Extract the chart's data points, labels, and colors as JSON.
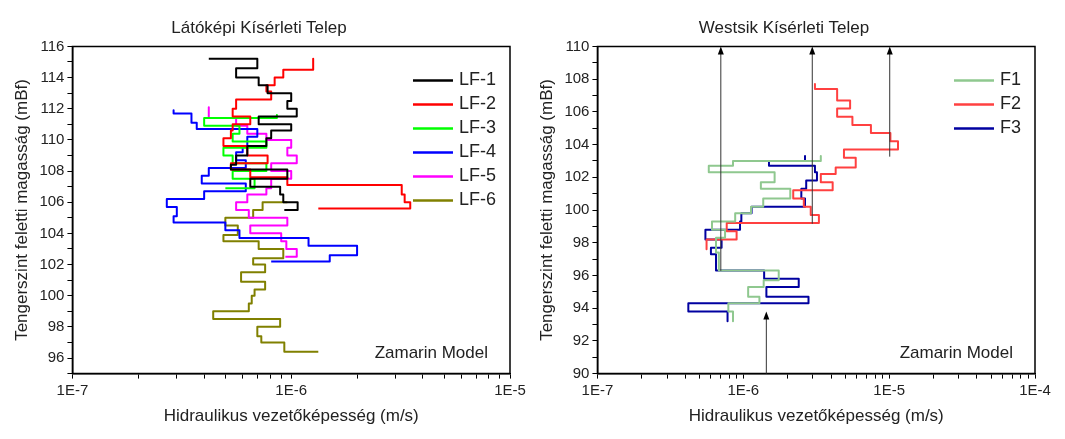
{
  "chart_data": [
    {
      "type": "line",
      "title": "Látóképi Kísérleti Telep",
      "xlabel": "Hidraulikus vezetőképesség (m/s)",
      "ylabel": "Tengerszint feletti magasság (mBf)",
      "log": "x",
      "legend": "top right",
      "marker": "none",
      "annotations": [
        "Zamarin Model"
      ],
      "xlim": [
        1e-07,
        1e-05
      ],
      "ylim": [
        95,
        116
      ],
      "xticks": [
        {
          "value": 1e-07,
          "label": "1E-7"
        },
        {
          "value": 2e-07,
          "label": null
        },
        {
          "value": 3e-07,
          "label": null
        },
        {
          "value": 4e-07,
          "label": null
        },
        {
          "value": 5e-07,
          "label": null
        },
        {
          "value": 6e-07,
          "label": null
        },
        {
          "value": 7e-07,
          "label": null
        },
        {
          "value": 8e-07,
          "label": null
        },
        {
          "value": 9e-07,
          "label": null
        },
        {
          "value": 1e-06,
          "label": "1E-6"
        },
        {
          "value": 2e-06,
          "label": null
        },
        {
          "value": 3e-06,
          "label": null
        },
        {
          "value": 4e-06,
          "label": null
        },
        {
          "value": 5e-06,
          "label": null
        },
        {
          "value": 6e-06,
          "label": null
        },
        {
          "value": 7e-06,
          "label": null
        },
        {
          "value": 8e-06,
          "label": null
        },
        {
          "value": 9e-06,
          "label": null
        },
        {
          "value": 1e-05,
          "label": "1E-5"
        }
      ],
      "yticks": [
        {
          "value": 95,
          "label": null
        },
        96,
        {
          "value": 97,
          "label": null
        },
        98,
        {
          "value": 99,
          "label": null
        },
        100,
        {
          "value": 101,
          "label": null
        },
        102,
        {
          "value": 103,
          "label": null
        },
        104,
        {
          "value": 105,
          "label": null
        },
        106,
        {
          "value": 107,
          "label": null
        },
        108,
        {
          "value": 109,
          "label": null
        },
        110,
        {
          "value": 111,
          "label": null
        },
        112,
        {
          "value": 113,
          "label": null
        },
        114,
        {
          "value": 115,
          "label": null
        },
        116
      ],
      "series": [
        {
          "name": "LF-1",
          "color": "#000000",
          "x": [
            4.2e-07,
            7e-07,
            7e-07,
            5.6e-07,
            5.6e-07,
            7.1e-07,
            7.1e-07,
            7.8e-07,
            7.8e-07,
            1e-06,
            1e-06,
            9.6e-07,
            9.6e-07,
            1.06e-06,
            1.06e-06,
            7.1e-07,
            7.1e-07,
            1e-06,
            1e-06,
            8.1e-07,
            8.1e-07,
            7.7e-07,
            7.7e-07,
            6.3e-07,
            6.3e-07,
            5.6e-07,
            5.6e-07,
            5.3e-07,
            5.3e-07,
            9.6e-07,
            9.6e-07,
            6.5e-07,
            6.5e-07,
            8.9e-07,
            8.9e-07,
            9.2e-07,
            9.2e-07,
            1.07e-06,
            1.07e-06,
            9.3e-07
          ],
          "values": [
            115.2,
            115.2,
            114.6,
            114.6,
            114.0,
            114.0,
            113.5,
            113.5,
            113.0,
            113.0,
            112.5,
            112.5,
            112.0,
            112.0,
            111.5,
            111.5,
            111.0,
            111.0,
            110.6,
            110.6,
            110.1,
            110.1,
            109.6,
            109.6,
            109.0,
            109.0,
            108.4,
            108.4,
            108.1,
            108.1,
            107.5,
            107.5,
            107.0,
            107.0,
            106.5,
            106.5,
            106.0,
            106.0,
            105.5,
            105.5
          ]
        },
        {
          "name": "LF-2",
          "color": "#ff0000",
          "x": [
            1.26e-06,
            1.26e-06,
            9.2e-07,
            9.2e-07,
            8.4e-07,
            8.4e-07,
            7.7e-07,
            7.7e-07,
            8.1e-07,
            8.1e-07,
            5.6e-07,
            5.6e-07,
            5.4e-07,
            5.4e-07,
            6.5e-07,
            6.5e-07,
            5.4e-07,
            5.4e-07,
            5.3e-07,
            5.3e-07,
            4.9e-07,
            4.9e-07,
            6.3e-07,
            6.3e-07,
            7.8e-07,
            7.8e-07,
            5.3e-07,
            5.3e-07,
            6.5e-07,
            6.5e-07,
            9.6e-07,
            9.6e-07,
            3.2e-06,
            3.2e-06,
            3.3e-06,
            3.3e-06,
            3.5e-06,
            3.5e-06,
            1.33e-06
          ],
          "values": [
            115.2,
            114.5,
            114.5,
            114.0,
            114.0,
            113.5,
            113.5,
            113.1,
            113.1,
            112.6,
            112.6,
            112.0,
            112.0,
            111.5,
            111.5,
            111.0,
            111.0,
            110.6,
            110.6,
            110.1,
            110.1,
            109.6,
            109.6,
            109.0,
            109.0,
            108.5,
            108.5,
            108.1,
            108.1,
            107.6,
            107.6,
            107.1,
            107.1,
            106.5,
            106.5,
            106.0,
            106.0,
            105.6,
            105.6
          ]
        },
        {
          "name": "LF-3",
          "color": "#00ff00",
          "x": [
            8.6e-07,
            8.6e-07,
            4e-07,
            4e-07,
            5.8e-07,
            5.8e-07,
            5.4e-07,
            5.4e-07,
            7.7e-07,
            7.7e-07,
            4.9e-07,
            4.9e-07,
            5.4e-07,
            5.4e-07,
            7.7e-07,
            7.7e-07,
            5.4e-07,
            5.4e-07,
            6.8e-07,
            6.8e-07,
            5e-07
          ],
          "values": [
            111.6,
            111.4,
            111.4,
            110.9,
            110.9,
            110.4,
            110.4,
            109.9,
            109.9,
            109.5,
            109.5,
            109.0,
            109.0,
            108.5,
            108.5,
            108.0,
            108.0,
            107.5,
            107.5,
            106.9,
            106.9
          ]
        },
        {
          "name": "LF-4",
          "color": "#0000ff",
          "x": [
            2.9e-07,
            2.9e-07,
            3.5e-07,
            3.5e-07,
            3.7e-07,
            3.7e-07,
            7e-07,
            7e-07,
            6.3e-07,
            6.3e-07,
            6e-07,
            6e-07,
            5.6e-07,
            5.6e-07,
            6.2e-07,
            6.2e-07,
            4.2e-07,
            4.2e-07,
            3.9e-07,
            3.9e-07,
            6.2e-07,
            6.2e-07,
            4e-07,
            4e-07,
            2.7e-07,
            2.7e-07,
            3e-07,
            3e-07,
            2.9e-07,
            2.9e-07,
            5e-07,
            5e-07,
            5.8e-07,
            5.8e-07,
            1.2e-06,
            1.2e-06,
            2e-06,
            2e-06,
            1.5e-06,
            1.5e-06,
            8.1e-07
          ],
          "values": [
            111.9,
            111.7,
            111.7,
            111.1,
            111.1,
            110.7,
            110.7,
            110.2,
            110.2,
            109.6,
            109.6,
            109.2,
            109.2,
            108.7,
            108.7,
            108.2,
            108.2,
            107.7,
            107.7,
            107.2,
            107.2,
            106.7,
            106.7,
            106.2,
            106.2,
            105.7,
            105.7,
            105.1,
            105.1,
            104.7,
            104.7,
            104.2,
            104.2,
            103.7,
            103.7,
            103.2,
            103.2,
            102.6,
            102.6,
            102.2,
            102.2
          ]
        },
        {
          "name": "LF-5",
          "color": "#ff00ff",
          "x": [
            4.2e-07,
            4.2e-07,
            5.6e-07,
            5.6e-07,
            6.3e-07,
            6.3e-07,
            7.7e-07,
            7.7e-07,
            1e-06,
            1e-06,
            9.6e-07,
            9.6e-07,
            1.06e-06,
            1.06e-06,
            8.1e-07,
            8.1e-07,
            1e-06,
            1e-06,
            8.1e-07,
            8.1e-07,
            7.7e-07,
            7.7e-07,
            6.3e-07,
            6.3e-07,
            5.6e-07,
            5.6e-07,
            6.4e-07,
            6.4e-07,
            9.6e-07,
            9.6e-07,
            6.5e-07,
            6.5e-07,
            9e-07,
            9e-07,
            9.5e-07,
            9.5e-07,
            1.06e-06,
            1.06e-06,
            9.4e-07
          ],
          "values": [
            112.1,
            111.4,
            111.4,
            110.9,
            110.9,
            110.4,
            110.4,
            110.0,
            110.0,
            109.5,
            109.5,
            109.0,
            109.0,
            108.5,
            108.5,
            108.0,
            108.0,
            107.5,
            107.5,
            106.9,
            106.9,
            106.5,
            106.5,
            106.0,
            106.0,
            105.5,
            105.5,
            105.0,
            105.0,
            104.5,
            104.5,
            104.0,
            104.0,
            103.5,
            103.5,
            103.0,
            103.0,
            102.5,
            102.5
          ]
        },
        {
          "name": "LF-6",
          "color": "#808000",
          "x": [
            9.6e-07,
            7.4e-07,
            7.4e-07,
            6.7e-07,
            6.7e-07,
            5e-07,
            5e-07,
            5.7e-07,
            5.7e-07,
            4.9e-07,
            4.9e-07,
            7.1e-07,
            7.1e-07,
            9.2e-07,
            9.2e-07,
            6.7e-07,
            6.7e-07,
            7.6e-07,
            7.6e-07,
            5.9e-07,
            5.9e-07,
            7.6e-07,
            7.6e-07,
            6.8e-07,
            6.8e-07,
            6.6e-07,
            6.6e-07,
            6.4e-07,
            6.4e-07,
            4.4e-07,
            4.4e-07,
            8.9e-07,
            8.9e-07,
            7e-07,
            7e-07,
            7.3e-07,
            7.3e-07,
            9.3e-07,
            9.3e-07,
            1.33e-06
          ],
          "values": [
            106.0,
            106.0,
            105.5,
            105.5,
            105.0,
            105.0,
            104.5,
            104.5,
            103.9,
            103.9,
            103.5,
            103.5,
            103.0,
            103.0,
            102.4,
            102.4,
            102.0,
            102.0,
            101.5,
            101.5,
            100.9,
            100.9,
            100.4,
            100.4,
            100.0,
            100.0,
            99.5,
            99.5,
            99.0,
            99.0,
            98.5,
            98.5,
            98.0,
            98.0,
            97.4,
            97.4,
            97.0,
            97.0,
            96.4,
            96.4
          ]
        }
      ]
    },
    {
      "type": "line",
      "title": "Westsik Kísérleti Telep",
      "xlabel": "Hidraulikus vezetőképesség (m/s)",
      "ylabel": "Tengerszint feletti magasság (mBf)",
      "log": "x",
      "legend": "top right",
      "marker": "none",
      "annotations": [
        "Zamarin Model"
      ],
      "xlim": [
        1e-07,
        0.0001
      ],
      "ylim": [
        90,
        110
      ],
      "xticks": [
        {
          "value": 1e-07,
          "label": "1E-7"
        },
        {
          "value": 2e-07,
          "label": null
        },
        {
          "value": 3e-07,
          "label": null
        },
        {
          "value": 4e-07,
          "label": null
        },
        {
          "value": 5e-07,
          "label": null
        },
        {
          "value": 6e-07,
          "label": null
        },
        {
          "value": 7e-07,
          "label": null
        },
        {
          "value": 8e-07,
          "label": null
        },
        {
          "value": 9e-07,
          "label": null
        },
        {
          "value": 1e-06,
          "label": "1E-6"
        },
        {
          "value": 2e-06,
          "label": null
        },
        {
          "value": 3e-06,
          "label": null
        },
        {
          "value": 4e-06,
          "label": null
        },
        {
          "value": 5e-06,
          "label": null
        },
        {
          "value": 6e-06,
          "label": null
        },
        {
          "value": 7e-06,
          "label": null
        },
        {
          "value": 8e-06,
          "label": null
        },
        {
          "value": 9e-06,
          "label": null
        },
        {
          "value": 1e-05,
          "label": "1E-5"
        },
        {
          "value": 2e-05,
          "label": null
        },
        {
          "value": 3e-05,
          "label": null
        },
        {
          "value": 4e-05,
          "label": null
        },
        {
          "value": 5e-05,
          "label": null
        },
        {
          "value": 6e-05,
          "label": null
        },
        {
          "value": 7e-05,
          "label": null
        },
        {
          "value": 8e-05,
          "label": null
        },
        {
          "value": 9e-05,
          "label": null
        },
        {
          "value": 0.0001,
          "label": "1E-4"
        }
      ],
      "yticks": [
        90,
        {
          "value": 91,
          "label": null
        },
        92,
        {
          "value": 93,
          "label": null
        },
        94,
        {
          "value": 95,
          "label": null
        },
        96,
        {
          "value": 97,
          "label": null
        },
        98,
        {
          "value": 99,
          "label": null
        },
        100,
        {
          "value": 101,
          "label": null
        },
        102,
        {
          "value": 103,
          "label": null
        },
        104,
        {
          "value": 105,
          "label": null
        },
        106,
        {
          "value": 107,
          "label": null
        },
        108,
        {
          "value": 109,
          "label": null
        },
        110
      ],
      "series": [
        {
          "name": "F1",
          "color": "#8fc88f",
          "x": [
            3.4e-06,
            3.4e-06,
            8.5e-07,
            8.5e-07,
            5.8e-07,
            5.8e-07,
            1.64e-06,
            1.64e-06,
            1.32e-06,
            1.32e-06,
            2.1e-06,
            2.1e-06,
            1.37e-06,
            1.37e-06,
            1.13e-06,
            1.13e-06,
            8.8e-07,
            8.8e-07,
            6.1e-07,
            6.1e-07,
            7.5e-07,
            7.5e-07,
            6.5e-07,
            6.5e-07,
            6.8e-07,
            6.8e-07,
            1.75e-06,
            1.75e-06,
            1.38e-06,
            1.38e-06,
            1.08e-06,
            1.08e-06,
            1.29e-06,
            1.29e-06,
            7.9e-07,
            7.9e-07,
            8.5e-07,
            8.5e-07
          ],
          "values": [
            103.3,
            103.0,
            103.0,
            102.7,
            102.7,
            102.3,
            102.3,
            101.7,
            101.7,
            101.3,
            101.3,
            100.7,
            100.7,
            100.2,
            100.2,
            99.8,
            99.8,
            99.3,
            99.3,
            98.8,
            98.8,
            98.3,
            98.3,
            97.4,
            97.4,
            96.3,
            96.3,
            95.7,
            95.7,
            95.3,
            95.3,
            94.7,
            94.7,
            94.3,
            94.3,
            93.8,
            93.8,
            93.2
          ]
        },
        {
          "name": "F2",
          "color": "#ff4040",
          "x": [
            3.1e-06,
            3.1e-06,
            4.4e-06,
            4.4e-06,
            5.4e-06,
            5.4e-06,
            4.4e-06,
            4.4e-06,
            5.6e-06,
            5.6e-06,
            7.5e-06,
            7.5e-06,
            1.02e-05,
            1.02e-05,
            1.15e-05,
            1.15e-05,
            4.9e-06,
            4.9e-06,
            5.9e-06,
            5.9e-06,
            4.3e-06,
            4.3e-06,
            3.4e-06,
            3.4e-06,
            4.1e-06,
            4.1e-06,
            2.2e-06,
            2.2e-06,
            2.6e-06,
            2.6e-06,
            2.9e-06,
            2.9e-06,
            3.3e-06,
            3.3e-06,
            7.7e-07,
            7.7e-07,
            9e-07,
            9e-07,
            5.6e-07,
            5.6e-07
          ],
          "values": [
            107.7,
            107.4,
            107.4,
            106.7,
            106.7,
            106.2,
            106.2,
            105.7,
            105.7,
            105.2,
            105.2,
            104.7,
            104.7,
            104.2,
            104.2,
            103.7,
            103.7,
            103.2,
            103.2,
            102.6,
            102.6,
            102.2,
            102.2,
            101.7,
            101.7,
            101.2,
            101.2,
            100.7,
            100.7,
            100.2,
            100.2,
            99.7,
            99.7,
            99.2,
            99.2,
            98.7,
            98.7,
            98.2,
            98.2,
            97.6
          ]
        },
        {
          "name": "F3",
          "color": "#0000a0",
          "x": [
            2.65e-06,
            2.65e-06,
            1.5e-06,
            1.5e-06,
            3.1e-06,
            3.1e-06,
            3.2e-06,
            3.2e-06,
            2.7e-06,
            2.7e-06,
            2.5e-06,
            2.5e-06,
            2.65e-06,
            2.65e-06,
            1.14e-06,
            1.14e-06,
            9.7e-07,
            9.7e-07,
            9.5e-07,
            9.5e-07,
            5.5e-07,
            5.5e-07,
            7.1e-07,
            7.1e-07,
            6e-07,
            6e-07,
            6.5e-07,
            6.5e-07,
            1.39e-06,
            1.39e-06,
            2.4e-06,
            2.4e-06,
            1.44e-06,
            1.44e-06,
            2.8e-06,
            2.8e-06,
            4.2e-07,
            4.2e-07,
            7.8e-07,
            7.8e-07
          ],
          "values": [
            103.3,
            103.0,
            103.0,
            102.7,
            102.7,
            102.3,
            102.3,
            101.8,
            101.8,
            101.3,
            101.3,
            100.7,
            100.7,
            100.2,
            100.2,
            99.8,
            99.8,
            99.3,
            99.3,
            98.8,
            98.8,
            98.2,
            98.2,
            97.7,
            97.7,
            97.3,
            97.3,
            96.3,
            96.3,
            95.8,
            95.8,
            95.3,
            95.3,
            94.7,
            94.7,
            94.3,
            94.3,
            93.8,
            93.8,
            93.2
          ]
        }
      ]
    }
  ]
}
